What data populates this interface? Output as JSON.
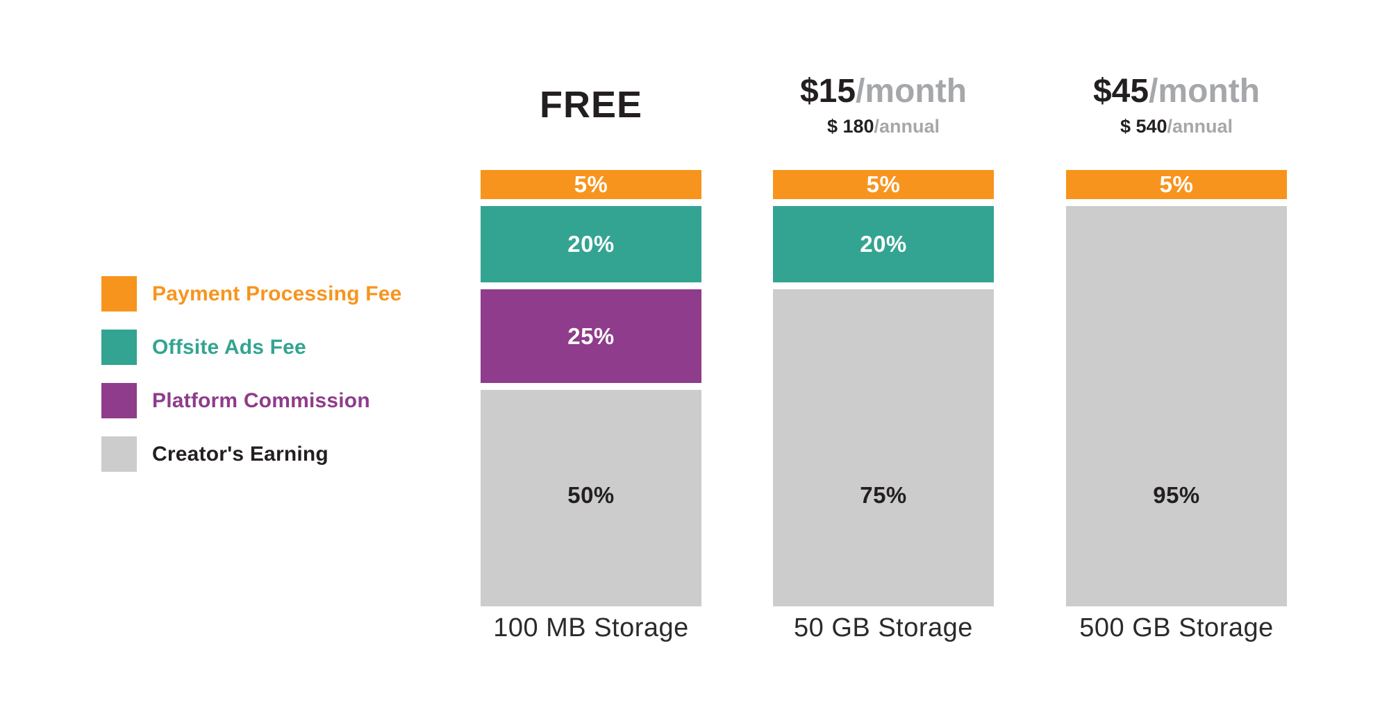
{
  "colors": {
    "payment_processing_fee": "#F7941E",
    "offsite_ads_fee": "#33A491",
    "platform_commission": "#8E3C8B",
    "creators_earning": "#CCCCCC",
    "dark_text": "#231F20",
    "muted_text": "#A5A7AA"
  },
  "legend": {
    "items": [
      {
        "label": "Payment Processing Fee",
        "color": "#F7941E"
      },
      {
        "label": "Offsite Ads Fee",
        "color": "#33A491"
      },
      {
        "label": "Platform Commission",
        "color": "#8E3C8B"
      },
      {
        "label": "Creator's Earning",
        "color": "#CCCCCC"
      }
    ]
  },
  "tiers": [
    {
      "title": "FREE",
      "storage": "100 MB Storage",
      "segments": [
        {
          "name": "Payment Processing Fee",
          "value": "5%"
        },
        {
          "name": "Offsite Ads Fee",
          "value": "20%"
        },
        {
          "name": "Platform Commission",
          "value": "25%"
        },
        {
          "name": "Creator's Earning",
          "value": "50%"
        }
      ]
    },
    {
      "price": "$15",
      "price_suffix": "/month",
      "annual": "$ 180",
      "annual_suffix": "/annual",
      "storage": "50 GB Storage",
      "segments": [
        {
          "name": "Payment Processing Fee",
          "value": "5%"
        },
        {
          "name": "Offsite Ads Fee",
          "value": "20%"
        },
        {
          "name": "Creator's Earning",
          "value": "75%"
        }
      ]
    },
    {
      "price": "$45",
      "price_suffix": "/month",
      "annual": "$ 540",
      "annual_suffix": "/annual",
      "storage": "500 GB Storage",
      "segments": [
        {
          "name": "Payment Processing Fee",
          "value": "5%"
        },
        {
          "name": "Creator's Earning",
          "value": "95%"
        }
      ]
    }
  ],
  "chart_data": {
    "type": "bar",
    "subtype": "stacked-percentage-columns",
    "title": "",
    "categories": [
      "FREE — 100 MB Storage",
      "$15/month ($ 180/annual) — 50 GB Storage",
      "$45/month ($ 540/annual) — 500 GB Storage"
    ],
    "series": [
      {
        "name": "Payment Processing Fee",
        "color": "#F7941E",
        "values": [
          5,
          5,
          5
        ]
      },
      {
        "name": "Offsite Ads Fee",
        "color": "#33A491",
        "values": [
          20,
          20,
          0
        ]
      },
      {
        "name": "Platform Commission",
        "color": "#8E3C8B",
        "values": [
          25,
          0,
          0
        ]
      },
      {
        "name": "Creator's Earning",
        "color": "#CCCCCC",
        "values": [
          50,
          75,
          95
        ]
      }
    ],
    "ylim": [
      0,
      100
    ],
    "grid": false,
    "legend_position": "left",
    "value_labels": "inside-segments"
  }
}
